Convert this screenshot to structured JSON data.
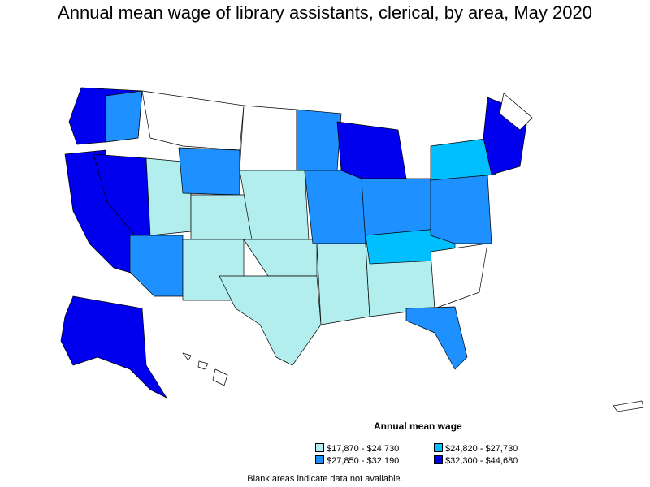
{
  "title": "Annual mean wage of library assistants, clerical, by area, May 2020",
  "legend": {
    "title": "Annual mean wage",
    "items": [
      {
        "label": "$17,870 - $24,730",
        "color": "#b3eeee"
      },
      {
        "label": "$24,820 - $27,730",
        "color": "#00bfff"
      },
      {
        "label": "$27,850 - $32,190",
        "color": "#1e90ff"
      },
      {
        "label": "$32,300 - $44,680",
        "color": "#0000ee"
      }
    ]
  },
  "note": "Blank areas indicate data not available.",
  "colors": {
    "no_data": "#ffffff",
    "border": "#000000"
  }
}
